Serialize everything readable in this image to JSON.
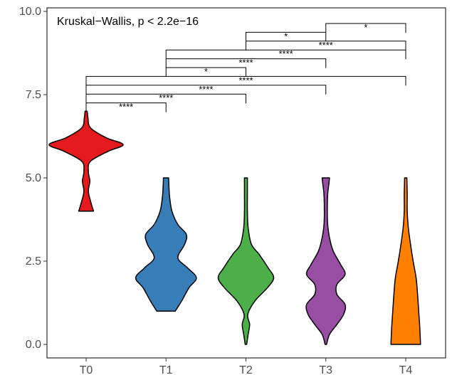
{
  "chart_data": {
    "type": "violin",
    "title": "",
    "xlabel": "",
    "ylabel": "",
    "ylim": [
      0,
      10
    ],
    "yticks": [
      "0.0",
      "2.5",
      "5.0",
      "7.5",
      "10.0"
    ],
    "categories": [
      "T0",
      "T1",
      "T2",
      "T3",
      "T4"
    ],
    "annotation": "Kruskal−Wallis, p < 2.2e−16",
    "series": [
      {
        "category": "T0",
        "color": "#e41a1c",
        "min": 4,
        "max": 7,
        "profile": [
          [
            4,
            0.2
          ],
          [
            4.3,
            0.12
          ],
          [
            4.6,
            0.06
          ],
          [
            4.9,
            0.1
          ],
          [
            5.2,
            0.06
          ],
          [
            5.5,
            0.12
          ],
          [
            5.8,
            0.6
          ],
          [
            6.0,
            1.0
          ],
          [
            6.2,
            0.55
          ],
          [
            6.5,
            0.12
          ],
          [
            6.8,
            0.05
          ],
          [
            7,
            0.03
          ]
        ]
      },
      {
        "category": "T1",
        "color": "#377eb8",
        "min": 1,
        "max": 5,
        "profile": [
          [
            1,
            0.25
          ],
          [
            1.3,
            0.42
          ],
          [
            1.7,
            0.62
          ],
          [
            2.0,
            0.82
          ],
          [
            2.3,
            0.58
          ],
          [
            2.6,
            0.32
          ],
          [
            3.0,
            0.5
          ],
          [
            3.3,
            0.55
          ],
          [
            3.6,
            0.32
          ],
          [
            4.0,
            0.16
          ],
          [
            4.4,
            0.1
          ],
          [
            4.7,
            0.08
          ],
          [
            5,
            0.07
          ]
        ]
      },
      {
        "category": "T2",
        "color": "#4daf4a",
        "min": 0,
        "max": 5,
        "profile": [
          [
            0,
            0.02
          ],
          [
            0.3,
            0.06
          ],
          [
            0.6,
            0.1
          ],
          [
            0.9,
            0.05
          ],
          [
            1.3,
            0.24
          ],
          [
            1.7,
            0.58
          ],
          [
            2.0,
            0.75
          ],
          [
            2.3,
            0.6
          ],
          [
            2.7,
            0.36
          ],
          [
            3.0,
            0.15
          ],
          [
            3.5,
            0.06
          ],
          [
            4.0,
            0.04
          ],
          [
            4.5,
            0.04
          ],
          [
            5,
            0.04
          ]
        ]
      },
      {
        "category": "T3",
        "color": "#984ea3",
        "min": 0,
        "max": 5,
        "profile": [
          [
            0,
            0.02
          ],
          [
            0.3,
            0.1
          ],
          [
            0.6,
            0.3
          ],
          [
            0.9,
            0.48
          ],
          [
            1.2,
            0.52
          ],
          [
            1.5,
            0.3
          ],
          [
            1.8,
            0.3
          ],
          [
            2.1,
            0.52
          ],
          [
            2.4,
            0.4
          ],
          [
            2.8,
            0.2
          ],
          [
            3.2,
            0.1
          ],
          [
            3.6,
            0.05
          ],
          [
            4.0,
            0.04
          ],
          [
            4.5,
            0.05
          ],
          [
            4.8,
            0.08
          ],
          [
            5,
            0.1
          ]
        ]
      },
      {
        "category": "T4",
        "color": "#ff7f00",
        "min": 0,
        "max": 5,
        "profile": [
          [
            0,
            0.4
          ],
          [
            0.5,
            0.38
          ],
          [
            1.0,
            0.35
          ],
          [
            1.5,
            0.32
          ],
          [
            2.0,
            0.28
          ],
          [
            2.5,
            0.2
          ],
          [
            3.0,
            0.13
          ],
          [
            3.5,
            0.07
          ],
          [
            4.0,
            0.04
          ],
          [
            4.5,
            0.04
          ],
          [
            5,
            0.03
          ]
        ]
      }
    ],
    "comparisons": [
      {
        "group1": "T0",
        "group2": "T1",
        "label": "****"
      },
      {
        "group1": "T0",
        "group2": "T2",
        "label": "****"
      },
      {
        "group1": "T0",
        "group2": "T3",
        "label": "****"
      },
      {
        "group1": "T0",
        "group2": "T4",
        "label": "****"
      },
      {
        "group1": "T1",
        "group2": "T2",
        "label": "*"
      },
      {
        "group1": "T1",
        "group2": "T3",
        "label": "****"
      },
      {
        "group1": "T1",
        "group2": "T4",
        "label": "****"
      },
      {
        "group1": "T2",
        "group2": "T3",
        "label": "*"
      },
      {
        "group1": "T2",
        "group2": "T4",
        "label": "****"
      },
      {
        "group1": "T3",
        "group2": "T4",
        "label": "*"
      }
    ]
  }
}
